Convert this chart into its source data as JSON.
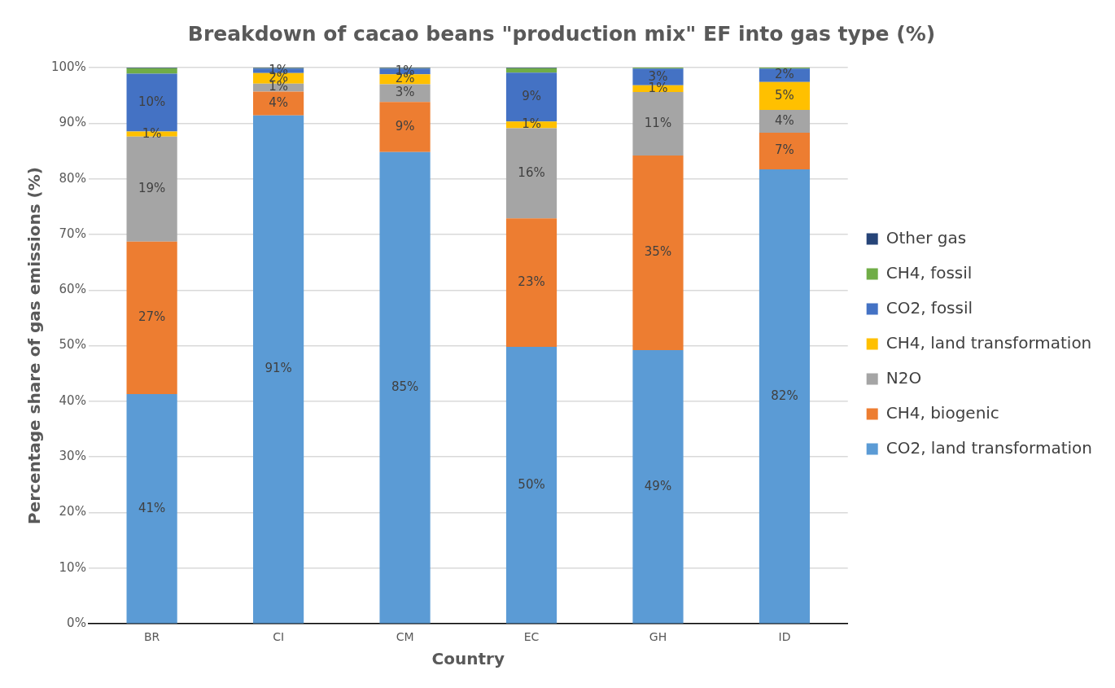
{
  "chart_data": {
    "type": "bar",
    "title": "Breakdown of cacao beans \"production mix\" EF into gas type (%)",
    "xlabel": "Country",
    "ylabel": "Percentage share of gas emissions (%)",
    "categories": [
      "BR",
      "CI",
      "CM",
      "EC",
      "GH",
      "ID"
    ],
    "stacked": true,
    "ylim": [
      0,
      100
    ],
    "yticks": [
      {
        "value": 0,
        "label": "0%"
      },
      {
        "value": 10,
        "label": "10%"
      },
      {
        "value": 20,
        "label": "20%"
      },
      {
        "value": 30,
        "label": "30%"
      },
      {
        "value": 40,
        "label": "40%"
      },
      {
        "value": 50,
        "label": "50%"
      },
      {
        "value": 60,
        "label": "60%"
      },
      {
        "value": 70,
        "label": "70%"
      },
      {
        "value": 80,
        "label": "80%"
      },
      {
        "value": 90,
        "label": "90%"
      },
      {
        "value": 100,
        "label": "100%"
      }
    ],
    "grid": "y",
    "legend": "right",
    "series": [
      {
        "name": "CO2, land transformation",
        "color": "#5b9bd5",
        "values": [
          41.3,
          91.4,
          84.8,
          49.8,
          49.2,
          81.7
        ],
        "value_labels": [
          "41%",
          "91%",
          "85%",
          "50%",
          "49%",
          "82%"
        ]
      },
      {
        "name": "CH4, biogenic",
        "color": "#ed7d31",
        "values": [
          27.4,
          4.3,
          9.0,
          23.1,
          35.0,
          6.6
        ],
        "value_labels": [
          "27%",
          "4%",
          "9%",
          "23%",
          "35%",
          "7%"
        ]
      },
      {
        "name": "N2O",
        "color": "#a5a5a5",
        "values": [
          18.9,
          1.4,
          3.2,
          16.2,
          11.4,
          4.1
        ],
        "value_labels": [
          "19%",
          "1%",
          "3%",
          "16%",
          "11%",
          "4%"
        ]
      },
      {
        "name": "CH4, land transformation",
        "color": "#ffc000",
        "values": [
          0.9,
          1.9,
          1.8,
          1.2,
          1.2,
          5.0
        ],
        "value_labels": [
          "1%",
          "2%",
          "2%",
          "1%",
          "1%",
          "5%"
        ]
      },
      {
        "name": "CO2, fossil",
        "color": "#4472c4",
        "values": [
          10.4,
          0.8,
          1.0,
          8.8,
          3.0,
          2.4
        ],
        "value_labels": [
          "10%",
          "1%",
          "1%",
          "9%",
          "3%",
          "2%"
        ]
      },
      {
        "name": "CH4, fossil",
        "color": "#70ad47",
        "values": [
          1.0,
          0.1,
          0.1,
          0.8,
          0.2,
          0.2
        ]
      },
      {
        "name": "Other gas",
        "color": "#264478",
        "values": [
          0.1,
          0.1,
          0.1,
          0.1,
          0,
          0
        ]
      }
    ]
  }
}
